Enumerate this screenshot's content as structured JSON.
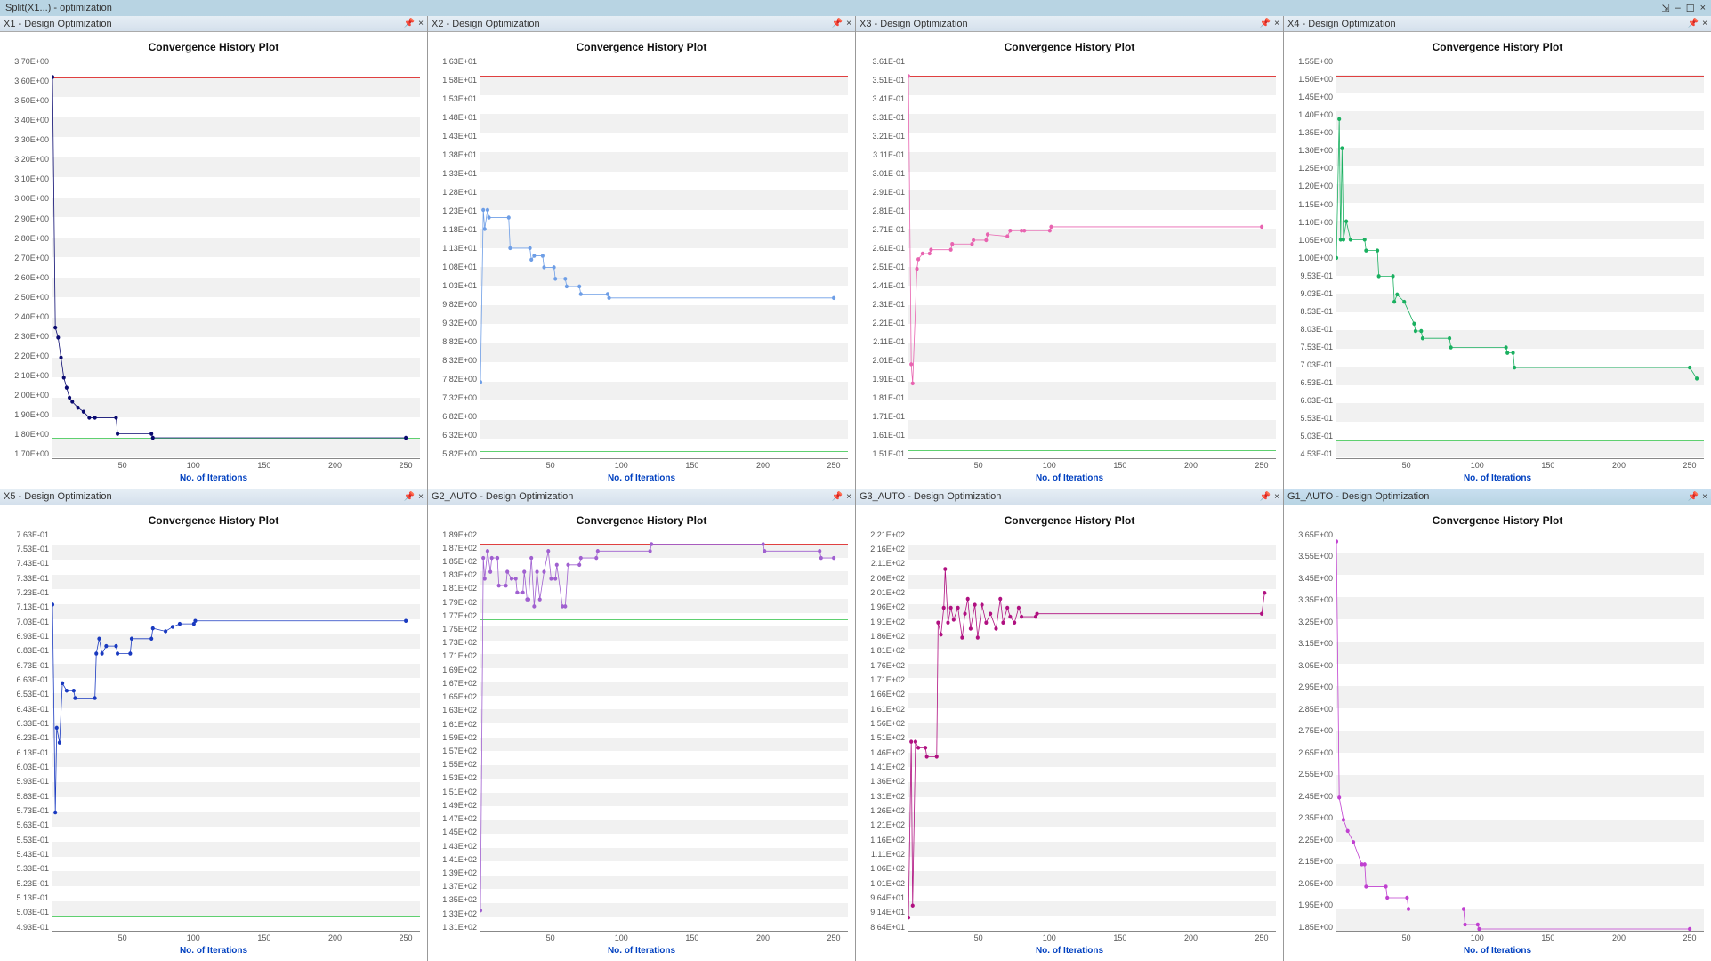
{
  "window": {
    "title": "Split(X1...) - optimization",
    "controls": {
      "pin": "⇲",
      "min": "–",
      "max": "☐",
      "close": "×"
    }
  },
  "chart_title": "Convergence History Plot",
  "x_axis_label": "No. of Iterations",
  "x_ticks": [
    "50",
    "100",
    "150",
    "200",
    "250"
  ],
  "panel_icons": {
    "pin": "📌",
    "close": "×"
  },
  "panels": [
    {
      "header": "X1 - Design Optimization",
      "active": false,
      "y_ticks": [
        "3.70E+00",
        "3.60E+00",
        "3.50E+00",
        "3.40E+00",
        "3.30E+00",
        "3.20E+00",
        "3.10E+00",
        "3.00E+00",
        "2.90E+00",
        "2.80E+00",
        "2.70E+00",
        "2.60E+00",
        "2.50E+00",
        "2.40E+00",
        "2.30E+00",
        "2.20E+00",
        "2.10E+00",
        "2.00E+00",
        "1.90E+00",
        "1.80E+00",
        "1.70E+00"
      ],
      "chart": {
        "type": "line",
        "ylim": [
          1.7,
          3.7
        ],
        "xlim": [
          0,
          260
        ],
        "series_color": "#0a0a70",
        "upper_y": 3.6,
        "lower_y": 1.8,
        "points": [
          [
            0,
            3.6
          ],
          [
            2,
            2.35
          ],
          [
            4,
            2.3
          ],
          [
            6,
            2.2
          ],
          [
            8,
            2.1
          ],
          [
            10,
            2.05
          ],
          [
            12,
            2.0
          ],
          [
            14,
            1.98
          ],
          [
            18,
            1.95
          ],
          [
            22,
            1.93
          ],
          [
            26,
            1.9
          ],
          [
            30,
            1.9
          ],
          [
            45,
            1.9
          ],
          [
            46,
            1.82
          ],
          [
            70,
            1.82
          ],
          [
            71,
            1.8
          ],
          [
            250,
            1.8
          ]
        ]
      }
    },
    {
      "header": "X2 - Design Optimization",
      "active": false,
      "y_ticks": [
        "1.63E+01",
        "1.58E+01",
        "1.53E+01",
        "1.48E+01",
        "1.43E+01",
        "1.38E+01",
        "1.33E+01",
        "1.28E+01",
        "1.23E+01",
        "1.18E+01",
        "1.13E+01",
        "1.08E+01",
        "1.03E+01",
        "9.82E+00",
        "9.32E+00",
        "8.82E+00",
        "8.32E+00",
        "7.82E+00",
        "7.32E+00",
        "6.82E+00",
        "6.32E+00",
        "5.82E+00"
      ],
      "chart": {
        "type": "line",
        "ylim": [
          5.82,
          16.3
        ],
        "xlim": [
          0,
          260
        ],
        "series_color": "#6e9ee6",
        "upper_y": 15.8,
        "lower_y": 6.0,
        "points": [
          [
            0,
            7.8
          ],
          [
            2,
            12.3
          ],
          [
            3,
            11.8
          ],
          [
            5,
            12.3
          ],
          [
            6,
            12.1
          ],
          [
            20,
            12.1
          ],
          [
            21,
            11.3
          ],
          [
            35,
            11.3
          ],
          [
            36,
            11.0
          ],
          [
            38,
            11.1
          ],
          [
            44,
            11.1
          ],
          [
            45,
            10.8
          ],
          [
            52,
            10.8
          ],
          [
            53,
            10.5
          ],
          [
            60,
            10.5
          ],
          [
            61,
            10.3
          ],
          [
            70,
            10.3
          ],
          [
            71,
            10.1
          ],
          [
            90,
            10.1
          ],
          [
            91,
            10.0
          ],
          [
            250,
            10.0
          ]
        ]
      }
    },
    {
      "header": "X3 - Design Optimization",
      "active": false,
      "y_ticks": [
        "3.61E-01",
        "3.51E-01",
        "3.41E-01",
        "3.31E-01",
        "3.21E-01",
        "3.11E-01",
        "3.01E-01",
        "2.91E-01",
        "2.81E-01",
        "2.71E-01",
        "2.61E-01",
        "2.51E-01",
        "2.41E-01",
        "2.31E-01",
        "2.21E-01",
        "2.11E-01",
        "2.01E-01",
        "1.91E-01",
        "1.81E-01",
        "1.71E-01",
        "1.61E-01",
        "1.51E-01"
      ],
      "chart": {
        "type": "line",
        "ylim": [
          0.151,
          0.361
        ],
        "xlim": [
          0,
          260
        ],
        "series_color": "#e864b0",
        "upper_y": 0.351,
        "lower_y": 0.155,
        "points": [
          [
            0,
            0.351
          ],
          [
            2,
            0.2
          ],
          [
            3,
            0.19
          ],
          [
            6,
            0.25
          ],
          [
            7,
            0.255
          ],
          [
            10,
            0.258
          ],
          [
            15,
            0.258
          ],
          [
            16,
            0.26
          ],
          [
            30,
            0.26
          ],
          [
            31,
            0.263
          ],
          [
            45,
            0.263
          ],
          [
            46,
            0.265
          ],
          [
            55,
            0.265
          ],
          [
            56,
            0.268
          ],
          [
            70,
            0.267
          ],
          [
            72,
            0.27
          ],
          [
            80,
            0.27
          ],
          [
            82,
            0.27
          ],
          [
            100,
            0.27
          ],
          [
            101,
            0.272
          ],
          [
            250,
            0.272
          ]
        ]
      }
    },
    {
      "header": "X4 - Design Optimization",
      "active": false,
      "y_ticks": [
        "1.55E+00",
        "1.50E+00",
        "1.45E+00",
        "1.40E+00",
        "1.35E+00",
        "1.30E+00",
        "1.25E+00",
        "1.20E+00",
        "1.15E+00",
        "1.10E+00",
        "1.05E+00",
        "1.00E+00",
        "9.53E-01",
        "9.03E-01",
        "8.53E-01",
        "8.03E-01",
        "7.53E-01",
        "7.03E-01",
        "6.53E-01",
        "6.03E-01",
        "5.53E-01",
        "5.03E-01",
        "4.53E-01"
      ],
      "chart": {
        "type": "line",
        "ylim": [
          0.453,
          1.55
        ],
        "xlim": [
          0,
          260
        ],
        "series_color": "#1ab060",
        "upper_y": 1.5,
        "lower_y": 0.5,
        "points": [
          [
            0,
            1.0
          ],
          [
            2,
            1.38
          ],
          [
            3,
            1.05
          ],
          [
            4,
            1.3
          ],
          [
            5,
            1.05
          ],
          [
            7,
            1.1
          ],
          [
            10,
            1.05
          ],
          [
            20,
            1.05
          ],
          [
            21,
            1.02
          ],
          [
            29,
            1.02
          ],
          [
            30,
            0.95
          ],
          [
            40,
            0.95
          ],
          [
            41,
            0.88
          ],
          [
            43,
            0.9
          ],
          [
            48,
            0.88
          ],
          [
            55,
            0.82
          ],
          [
            56,
            0.8
          ],
          [
            60,
            0.8
          ],
          [
            61,
            0.78
          ],
          [
            80,
            0.78
          ],
          [
            81,
            0.755
          ],
          [
            120,
            0.755
          ],
          [
            121,
            0.74
          ],
          [
            125,
            0.74
          ],
          [
            126,
            0.7
          ],
          [
            250,
            0.7
          ],
          [
            255,
            0.67
          ]
        ]
      }
    },
    {
      "header": "X5 - Design Optimization",
      "active": false,
      "y_ticks": [
        "7.63E-01",
        "7.53E-01",
        "7.43E-01",
        "7.33E-01",
        "7.23E-01",
        "7.13E-01",
        "7.03E-01",
        "6.93E-01",
        "6.83E-01",
        "6.73E-01",
        "6.63E-01",
        "6.53E-01",
        "6.43E-01",
        "6.33E-01",
        "6.23E-01",
        "6.13E-01",
        "6.03E-01",
        "5.93E-01",
        "5.83E-01",
        "5.73E-01",
        "5.63E-01",
        "5.53E-01",
        "5.43E-01",
        "5.33E-01",
        "5.23E-01",
        "5.13E-01",
        "5.03E-01",
        "4.93E-01"
      ],
      "chart": {
        "type": "line",
        "ylim": [
          0.493,
          0.763
        ],
        "xlim": [
          0,
          260
        ],
        "series_color": "#1a3ac0",
        "upper_y": 0.753,
        "lower_y": 0.503,
        "points": [
          [
            0,
            0.713
          ],
          [
            2,
            0.573
          ],
          [
            3,
            0.63
          ],
          [
            5,
            0.62
          ],
          [
            7,
            0.66
          ],
          [
            10,
            0.655
          ],
          [
            15,
            0.655
          ],
          [
            16,
            0.65
          ],
          [
            30,
            0.65
          ],
          [
            31,
            0.68
          ],
          [
            33,
            0.69
          ],
          [
            35,
            0.68
          ],
          [
            38,
            0.685
          ],
          [
            45,
            0.685
          ],
          [
            46,
            0.68
          ],
          [
            55,
            0.68
          ],
          [
            56,
            0.69
          ],
          [
            70,
            0.69
          ],
          [
            71,
            0.697
          ],
          [
            80,
            0.695
          ],
          [
            85,
            0.698
          ],
          [
            90,
            0.7
          ],
          [
            100,
            0.7
          ],
          [
            101,
            0.702
          ],
          [
            250,
            0.702
          ]
        ]
      }
    },
    {
      "header": "G2_AUTO - Design Optimization",
      "active": false,
      "y_ticks": [
        "1.89E+02",
        "1.87E+02",
        "1.85E+02",
        "1.83E+02",
        "1.81E+02",
        "1.79E+02",
        "1.77E+02",
        "1.75E+02",
        "1.73E+02",
        "1.71E+02",
        "1.69E+02",
        "1.67E+02",
        "1.65E+02",
        "1.63E+02",
        "1.61E+02",
        "1.59E+02",
        "1.57E+02",
        "1.55E+02",
        "1.53E+02",
        "1.51E+02",
        "1.49E+02",
        "1.47E+02",
        "1.45E+02",
        "1.43E+02",
        "1.41E+02",
        "1.39E+02",
        "1.37E+02",
        "1.35E+02",
        "1.33E+02",
        "1.31E+02"
      ],
      "chart": {
        "type": "line",
        "ylim": [
          131,
          189
        ],
        "xlim": [
          0,
          260
        ],
        "series_color": "#a060d0",
        "upper_y": 187,
        "lower_y": 176,
        "points": [
          [
            0,
            134
          ],
          [
            2,
            185
          ],
          [
            3,
            182
          ],
          [
            5,
            186
          ],
          [
            7,
            183
          ],
          [
            8,
            185
          ],
          [
            12,
            185
          ],
          [
            13,
            181
          ],
          [
            18,
            181
          ],
          [
            19,
            183
          ],
          [
            22,
            182
          ],
          [
            25,
            182
          ],
          [
            26,
            180
          ],
          [
            30,
            180
          ],
          [
            31,
            183
          ],
          [
            33,
            179
          ],
          [
            34,
            179
          ],
          [
            36,
            185
          ],
          [
            38,
            178
          ],
          [
            40,
            183
          ],
          [
            42,
            179
          ],
          [
            45,
            183
          ],
          [
            48,
            186
          ],
          [
            50,
            182
          ],
          [
            53,
            182
          ],
          [
            54,
            184
          ],
          [
            58,
            178
          ],
          [
            60,
            178
          ],
          [
            62,
            184
          ],
          [
            70,
            184
          ],
          [
            71,
            185
          ],
          [
            82,
            185
          ],
          [
            83,
            186
          ],
          [
            120,
            186
          ],
          [
            121,
            187
          ],
          [
            200,
            187
          ],
          [
            201,
            186
          ],
          [
            240,
            186
          ],
          [
            241,
            185
          ],
          [
            250,
            185
          ]
        ]
      }
    },
    {
      "header": "G3_AUTO - Design Optimization",
      "active": false,
      "y_ticks": [
        "2.21E+02",
        "2.16E+02",
        "2.11E+02",
        "2.06E+02",
        "2.01E+02",
        "1.96E+02",
        "1.91E+02",
        "1.86E+02",
        "1.81E+02",
        "1.76E+02",
        "1.71E+02",
        "1.66E+02",
        "1.61E+02",
        "1.56E+02",
        "1.51E+02",
        "1.46E+02",
        "1.41E+02",
        "1.36E+02",
        "1.31E+02",
        "1.26E+02",
        "1.21E+02",
        "1.16E+02",
        "1.11E+02",
        "1.06E+02",
        "1.01E+02",
        "9.64E+01",
        "9.14E+01",
        "8.64E+01"
      ],
      "chart": {
        "type": "line",
        "ylim": [
          86.4,
          221
        ],
        "xlim": [
          0,
          260
        ],
        "series_color": "#b01080",
        "upper_y": 216,
        "lower_y": null,
        "points": [
          [
            0,
            91
          ],
          [
            2,
            150
          ],
          [
            3,
            95
          ],
          [
            5,
            150
          ],
          [
            7,
            148
          ],
          [
            12,
            148
          ],
          [
            13,
            145
          ],
          [
            20,
            145
          ],
          [
            21,
            190
          ],
          [
            23,
            186
          ],
          [
            25,
            195
          ],
          [
            26,
            208
          ],
          [
            28,
            190
          ],
          [
            30,
            195
          ],
          [
            32,
            191
          ],
          [
            35,
            195
          ],
          [
            38,
            185
          ],
          [
            40,
            193
          ],
          [
            42,
            198
          ],
          [
            44,
            188
          ],
          [
            47,
            196
          ],
          [
            49,
            185
          ],
          [
            52,
            196
          ],
          [
            55,
            190
          ],
          [
            58,
            193
          ],
          [
            62,
            188
          ],
          [
            65,
            198
          ],
          [
            67,
            190
          ],
          [
            70,
            195
          ],
          [
            72,
            192
          ],
          [
            75,
            190
          ],
          [
            78,
            195
          ],
          [
            80,
            192
          ],
          [
            90,
            192
          ],
          [
            91,
            193
          ],
          [
            250,
            193
          ],
          [
            252,
            200
          ]
        ]
      }
    },
    {
      "header": "G1_AUTO - Design Optimization",
      "active": true,
      "y_ticks": [
        "3.65E+00",
        "3.55E+00",
        "3.45E+00",
        "3.35E+00",
        "3.25E+00",
        "3.15E+00",
        "3.05E+00",
        "2.95E+00",
        "2.85E+00",
        "2.75E+00",
        "2.65E+00",
        "2.55E+00",
        "2.45E+00",
        "2.35E+00",
        "2.25E+00",
        "2.15E+00",
        "2.05E+00",
        "1.95E+00",
        "1.85E+00"
      ],
      "chart": {
        "type": "line",
        "ylim": [
          1.85,
          3.65
        ],
        "xlim": [
          0,
          260
        ],
        "series_color": "#c040d0",
        "upper_y": null,
        "lower_y": null,
        "points": [
          [
            0,
            3.6
          ],
          [
            2,
            2.45
          ],
          [
            5,
            2.35
          ],
          [
            8,
            2.3
          ],
          [
            12,
            2.25
          ],
          [
            18,
            2.15
          ],
          [
            20,
            2.15
          ],
          [
            21,
            2.05
          ],
          [
            35,
            2.05
          ],
          [
            36,
            2.0
          ],
          [
            50,
            2.0
          ],
          [
            51,
            1.95
          ],
          [
            90,
            1.95
          ],
          [
            91,
            1.88
          ],
          [
            100,
            1.88
          ],
          [
            101,
            1.86
          ],
          [
            250,
            1.86
          ]
        ]
      }
    }
  ]
}
